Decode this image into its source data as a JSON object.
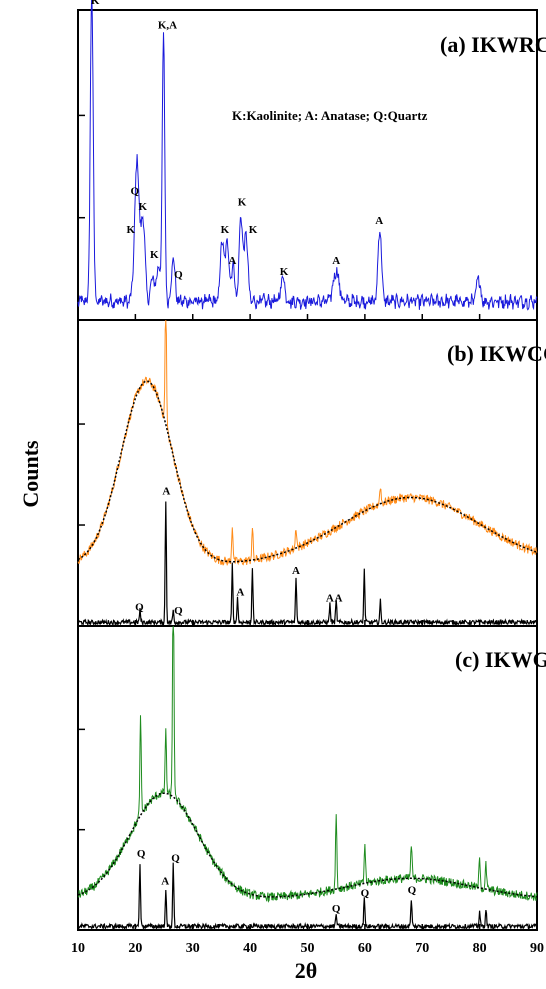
{
  "chart_data": {
    "type": "line",
    "xlabel": "2θ",
    "ylabel": "Counts",
    "xlim": [
      10,
      90
    ],
    "x_ticks": [
      10,
      20,
      30,
      40,
      50,
      60,
      70,
      80,
      90
    ],
    "grid": false,
    "colors": {
      "IKWRC": "#1a1adc",
      "IKWCC": "#ff8c1a",
      "IKWG": "#1f8c1f",
      "reference": "#000000",
      "fit": "#000000"
    },
    "legend_text": "K:Kaolinite; A: Anatase;   Q:Quartz",
    "panels": [
      {
        "id": "IKWRC",
        "title": "(a)  IKWRC",
        "background": 0.06,
        "peaks": [
          [
            12.4,
            1.0,
            0.25
          ],
          [
            20.0,
            0.2,
            0.35
          ],
          [
            20.4,
            0.34,
            0.3
          ],
          [
            21.3,
            0.28,
            0.35
          ],
          [
            23.0,
            0.08,
            0.3
          ],
          [
            24.0,
            0.12,
            0.3
          ],
          [
            24.9,
            0.86,
            0.22
          ],
          [
            26.6,
            0.14,
            0.3
          ],
          [
            35.1,
            0.2,
            0.3
          ],
          [
            36.0,
            0.2,
            0.3
          ],
          [
            37.0,
            0.12,
            0.3
          ],
          [
            38.4,
            0.28,
            0.3
          ],
          [
            39.3,
            0.22,
            0.3
          ],
          [
            45.7,
            0.08,
            0.35
          ],
          [
            55.0,
            0.1,
            0.5
          ],
          [
            62.6,
            0.24,
            0.3
          ],
          [
            79.8,
            0.08,
            0.3
          ]
        ],
        "peak_labels": [
          {
            "label": "K",
            "x": 13.0,
            "y": 1.02
          },
          {
            "label": "Q",
            "x": 19.9,
            "y": 0.405
          },
          {
            "label": "K",
            "x": 21.3,
            "y": 0.355
          },
          {
            "label": "K",
            "x": 19.2,
            "y": 0.28
          },
          {
            "label": "K",
            "x": 23.3,
            "y": 0.2
          },
          {
            "label": "K,A",
            "x": 25.6,
            "y": 0.94
          },
          {
            "label": "Q",
            "x": 27.5,
            "y": 0.135
          },
          {
            "label": "K",
            "x": 35.6,
            "y": 0.28
          },
          {
            "label": "A",
            "x": 36.9,
            "y": 0.18
          },
          {
            "label": "K",
            "x": 38.6,
            "y": 0.37
          },
          {
            "label": "K",
            "x": 40.5,
            "y": 0.28
          },
          {
            "label": "K",
            "x": 45.9,
            "y": 0.145
          },
          {
            "label": "A",
            "x": 55.0,
            "y": 0.18
          },
          {
            "label": "A",
            "x": 62.5,
            "y": 0.31
          }
        ]
      },
      {
        "id": "IKWCC",
        "title": "(b) IKWCC",
        "hump": {
          "center": 22,
          "height": 0.6,
          "width": 4.5,
          "base": 0.2,
          "second_center": 68,
          "second_height": 0.22,
          "second_width": 12
        },
        "sharp_peaks": [
          [
            25.3,
            0.42
          ],
          [
            36.9,
            0.12
          ],
          [
            40.4,
            0.1
          ],
          [
            48.0,
            0.07
          ],
          [
            62.7,
            0.06
          ]
        ],
        "reference": {
          "peaks": [
            [
              20.8,
              0.04
            ],
            [
              25.3,
              0.4
            ],
            [
              26.6,
              0.04
            ],
            [
              36.9,
              0.19
            ],
            [
              37.8,
              0.08
            ],
            [
              40.4,
              0.17
            ],
            [
              48.0,
              0.15
            ],
            [
              53.9,
              0.06
            ],
            [
              55.0,
              0.07
            ],
            [
              59.9,
              0.17
            ],
            [
              62.7,
              0.07
            ]
          ],
          "labels": [
            {
              "label": "Q",
              "x": 20.7,
              "y": 0.05
            },
            {
              "label": "Q",
              "x": 27.5,
              "y": 0.04
            },
            {
              "label": "A",
              "x": 25.4,
              "y": 0.43
            },
            {
              "label": "A",
              "x": 38.3,
              "y": 0.1
            },
            {
              "label": "A",
              "x": 48.0,
              "y": 0.17
            },
            {
              "label": "A",
              "x": 53.9,
              "y": 0.08
            },
            {
              "label": "A",
              "x": 55.4,
              "y": 0.08
            }
          ]
        }
      },
      {
        "id": "IKWG",
        "title": "(c) IKWG",
        "hump": {
          "center": 25,
          "height": 0.35,
          "width": 6,
          "base": 0.1,
          "second_center": 68,
          "second_height": 0.07,
          "second_width": 11
        },
        "sharp_peaks": [
          [
            20.9,
            0.32
          ],
          [
            25.3,
            0.2
          ],
          [
            26.6,
            0.76
          ],
          [
            55.0,
            0.24
          ],
          [
            60.0,
            0.13
          ],
          [
            68.1,
            0.11
          ],
          [
            80.0,
            0.1
          ],
          [
            81.1,
            0.08
          ]
        ],
        "reference": {
          "peaks": [
            [
              20.8,
              0.21
            ],
            [
              25.3,
              0.12
            ],
            [
              26.6,
              0.21
            ],
            [
              55.0,
              0.04
            ],
            [
              59.9,
              0.1
            ],
            [
              68.1,
              0.09
            ],
            [
              80.0,
              0.05
            ],
            [
              81.1,
              0.06
            ]
          ],
          "labels": [
            {
              "label": "Q",
              "x": 21.0,
              "y": 0.24
            },
            {
              "label": "A",
              "x": 25.2,
              "y": 0.15
            },
            {
              "label": "Q",
              "x": 27.0,
              "y": 0.225
            },
            {
              "label": "Q",
              "x": 55.0,
              "y": 0.06
            },
            {
              "label": "Q",
              "x": 60.0,
              "y": 0.11
            },
            {
              "label": "Q",
              "x": 68.2,
              "y": 0.12
            }
          ]
        }
      }
    ]
  }
}
